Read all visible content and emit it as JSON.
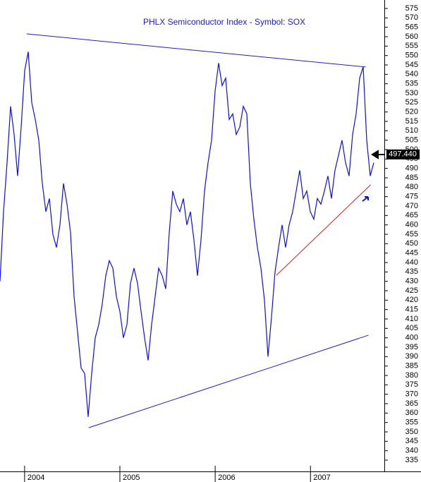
{
  "chart_data": {
    "type": "line",
    "title": "PHLX Semiconductor Index - Symbol: SOX",
    "x": [
      2003.742,
      2003.779,
      2003.816,
      2003.853,
      2003.89,
      2003.927,
      2003.964,
      2004.001,
      2004.038,
      2004.075,
      2004.112,
      2004.149,
      2004.186,
      2004.223,
      2004.26,
      2004.297,
      2004.334,
      2004.371,
      2004.408,
      2004.445,
      2004.482,
      2004.519,
      2004.556,
      2004.593,
      2004.63,
      2004.667,
      2004.704,
      2004.741,
      2004.778,
      2004.815,
      2004.852,
      2004.889,
      2004.926,
      2004.963,
      2005.0,
      2005.037,
      2005.074,
      2005.111,
      2005.148,
      2005.185,
      2005.222,
      2005.259,
      2005.296,
      2005.333,
      2005.37,
      2005.407,
      2005.444,
      2005.481,
      2005.518,
      2005.555,
      2005.592,
      2005.629,
      2005.666,
      2005.703,
      2005.74,
      2005.777,
      2005.814,
      2005.851,
      2005.888,
      2005.925,
      2005.962,
      2005.999,
      2006.036,
      2006.073,
      2006.11,
      2006.147,
      2006.184,
      2006.221,
      2006.258,
      2006.295,
      2006.332,
      2006.369,
      2006.406,
      2006.443,
      2006.48,
      2006.517,
      2006.554,
      2006.591,
      2006.628,
      2006.665,
      2006.702,
      2006.739,
      2006.776,
      2006.813,
      2006.85,
      2006.887,
      2006.924,
      2006.961,
      2006.998,
      2007.035,
      2007.072,
      2007.109,
      2007.146,
      2007.183,
      2007.22,
      2007.257,
      2007.294,
      2007.331,
      2007.368,
      2007.405,
      2007.442,
      2007.479,
      2007.516,
      2007.553,
      2007.59,
      2007.627,
      2007.664
    ],
    "series": [
      {
        "name": "SOX",
        "color": "#1010d0",
        "values": [
          430,
          467,
          493,
          523,
          508,
          486,
          512,
          542,
          552,
          525,
          516,
          505,
          482,
          467,
          474,
          455,
          448,
          460,
          482,
          471,
          456,
          422,
          403,
          384,
          381,
          358,
          381,
          400,
          407,
          418,
          433,
          441,
          437,
          422,
          414,
          400,
          407,
          429,
          437,
          429,
          414,
          400,
          388,
          407,
          422,
          437,
          433,
          426,
          456,
          478,
          471,
          467,
          474,
          460,
          467,
          452,
          433,
          452,
          478,
          493,
          505,
          531,
          546,
          534,
          538,
          516,
          519,
          508,
          512,
          523,
          519,
          482,
          463,
          448,
          437,
          420,
          390,
          411,
          435,
          448,
          460,
          448,
          460,
          467,
          478,
          489,
          474,
          478,
          467,
          463,
          474,
          471,
          478,
          486,
          474,
          489,
          497,
          505,
          493,
          486,
          508,
          519,
          538,
          544,
          505,
          486,
          493
        ]
      }
    ],
    "trendlines": [
      {
        "color": "#2020c0",
        "x": [
          2004.022,
          2007.579
        ],
        "values": [
          561.5,
          543.9
        ]
      },
      {
        "color": "#2020c0",
        "x": [
          2004.672,
          2007.609
        ],
        "values": [
          352.2,
          401.4
        ]
      },
      {
        "color": "#d02020",
        "x": [
          2006.642,
          2007.631
        ],
        "values": [
          433.2,
          481.3
        ]
      }
    ],
    "last_price": {
      "value": 497.44,
      "label": "497.440"
    },
    "xlim": [
      2003.742,
      2007.775
    ],
    "xticks": [
      2004,
      2005,
      2006,
      2007
    ],
    "ylim": [
      329,
      579.5
    ],
    "yticks": [
      335,
      340,
      345,
      350,
      355,
      360,
      365,
      370,
      375,
      380,
      385,
      390,
      395,
      400,
      405,
      410,
      415,
      420,
      425,
      430,
      435,
      440,
      445,
      450,
      455,
      460,
      465,
      470,
      475,
      480,
      485,
      490,
      495,
      500,
      505,
      510,
      515,
      520,
      525,
      530,
      535,
      540,
      545,
      550,
      555,
      560,
      565,
      570,
      575
    ]
  }
}
